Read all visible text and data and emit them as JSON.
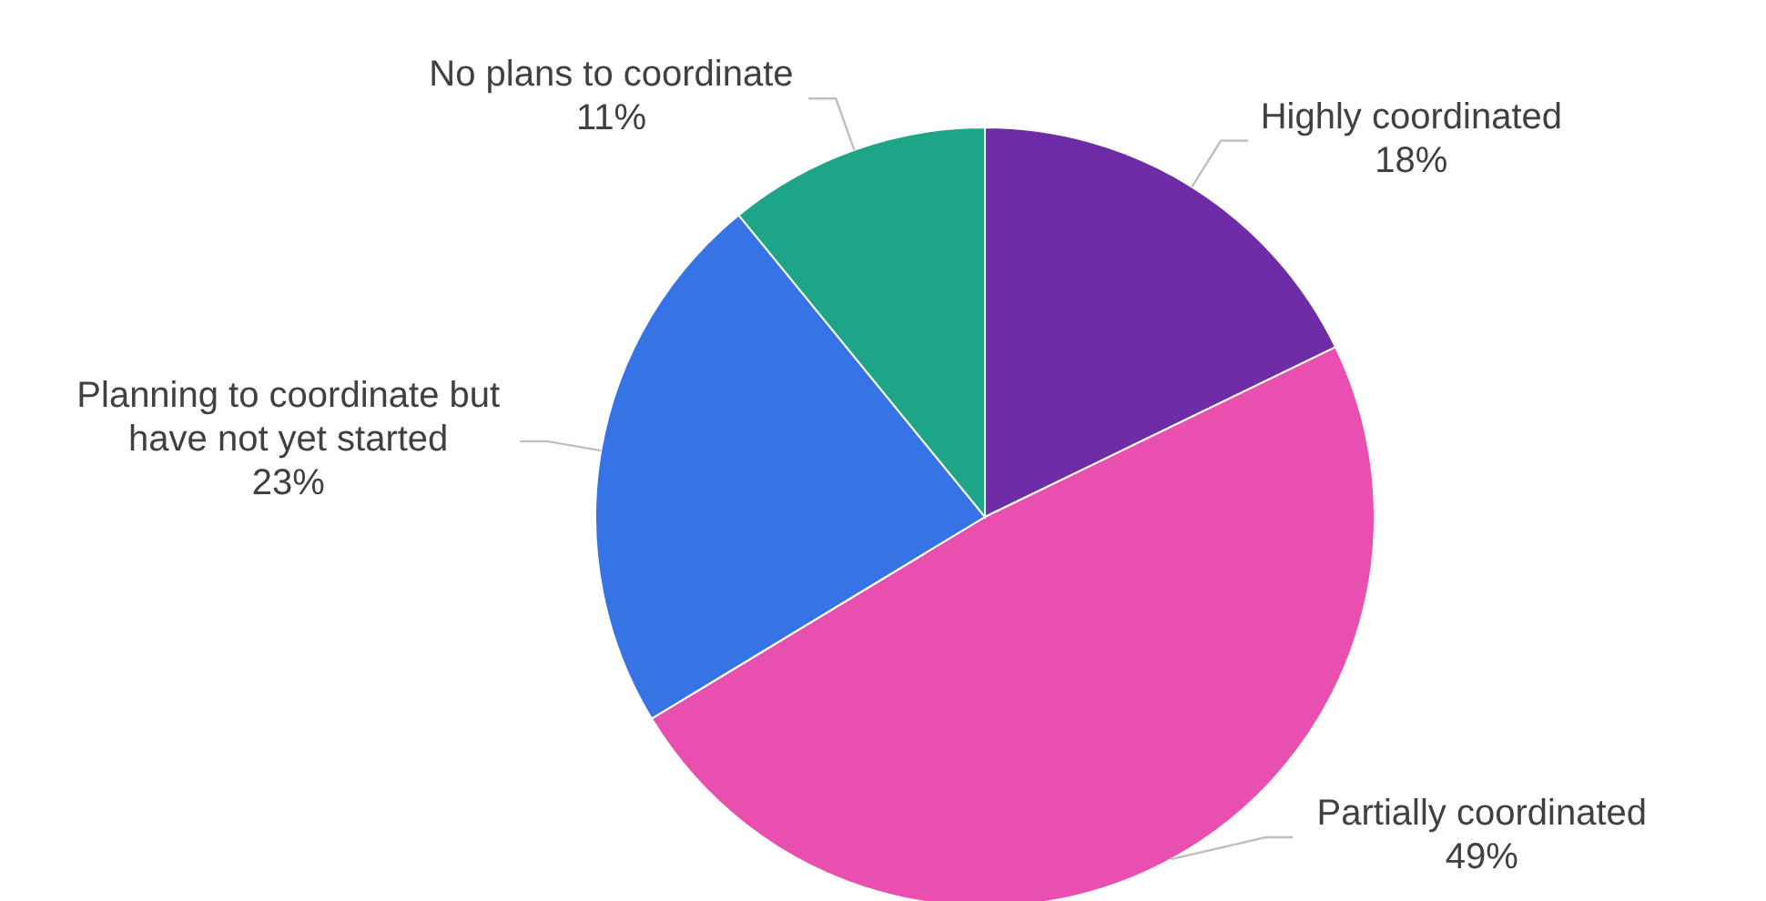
{
  "chart_data": {
    "type": "pie",
    "categories": [
      "Highly coordinated",
      "Partially coordinated",
      "Planning to coordinate but have not yet started",
      "No plans to coordinate"
    ],
    "values": [
      18,
      49,
      23,
      11
    ],
    "value_labels": [
      "18%",
      "49%",
      "23%",
      "11%"
    ],
    "colors": [
      "#6e2ca6",
      "#e94fae",
      "#3673e4",
      "#1ea587"
    ]
  }
}
